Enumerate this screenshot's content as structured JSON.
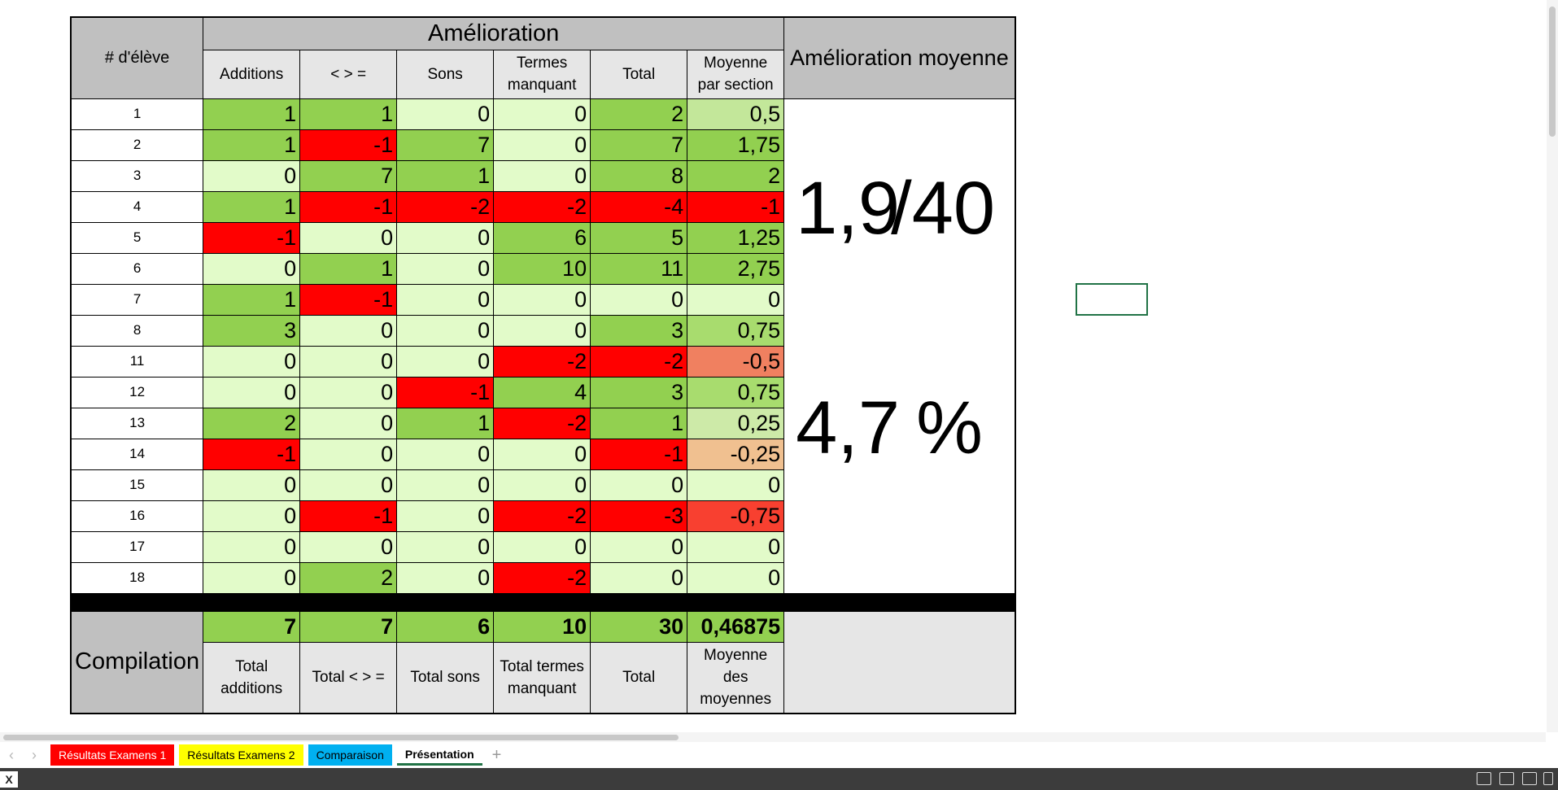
{
  "sheet": {
    "title": "Amélioration",
    "student_header": "# d'élève",
    "avg_header": "Amélioration moyenne",
    "columns": [
      "Additions",
      "< > =",
      "Sons",
      "Termes manquant",
      "Total",
      "Moyenne par section"
    ],
    "rows": [
      {
        "id": "1",
        "values": [
          "1",
          "1",
          "0",
          "0",
          "2",
          "0,5"
        ]
      },
      {
        "id": "2",
        "values": [
          "1",
          "-1",
          "7",
          "0",
          "7",
          "1,75"
        ]
      },
      {
        "id": "3",
        "values": [
          "0",
          "7",
          "1",
          "0",
          "8",
          "2"
        ]
      },
      {
        "id": "4",
        "values": [
          "1",
          "-1",
          "-2",
          "-2",
          "-4",
          "-1"
        ]
      },
      {
        "id": "5",
        "values": [
          "-1",
          "0",
          "0",
          "6",
          "5",
          "1,25"
        ]
      },
      {
        "id": "6",
        "values": [
          "0",
          "1",
          "0",
          "10",
          "11",
          "2,75"
        ]
      },
      {
        "id": "7",
        "values": [
          "1",
          "-1",
          "0",
          "0",
          "0",
          "0"
        ]
      },
      {
        "id": "8",
        "values": [
          "3",
          "0",
          "0",
          "0",
          "3",
          "0,75"
        ]
      },
      {
        "id": "11",
        "values": [
          "0",
          "0",
          "0",
          "-2",
          "-2",
          "-0,5"
        ]
      },
      {
        "id": "12",
        "values": [
          "0",
          "0",
          "-1",
          "4",
          "3",
          "0,75"
        ]
      },
      {
        "id": "13",
        "values": [
          "2",
          "0",
          "1",
          "-2",
          "1",
          "0,25"
        ]
      },
      {
        "id": "14",
        "values": [
          "-1",
          "0",
          "0",
          "0",
          "-1",
          "-0,25"
        ]
      },
      {
        "id": "15",
        "values": [
          "0",
          "0",
          "0",
          "0",
          "0",
          "0"
        ]
      },
      {
        "id": "16",
        "values": [
          "0",
          "-1",
          "0",
          "-2",
          "-3",
          "-0,75"
        ]
      },
      {
        "id": "17",
        "values": [
          "0",
          "0",
          "0",
          "0",
          "0",
          "0"
        ]
      },
      {
        "id": "18",
        "values": [
          "0",
          "2",
          "0",
          "-2",
          "0",
          "0"
        ]
      }
    ],
    "summary": {
      "score": "1,9",
      "score_suffix": "/40",
      "percent": "4,7",
      "percent_sign": "%"
    },
    "compilation": {
      "label": "Compilation",
      "values": [
        "7",
        "7",
        "6",
        "10",
        "30",
        "0,46875"
      ],
      "labels": [
        "Total additions",
        "Total < > =",
        "Total sons",
        "Total termes manquant",
        "Total",
        "Moyenne des moyennes"
      ]
    }
  },
  "colors": {
    "positive": "#92d050",
    "zero": "#e2fbc9",
    "negative": "#ff0000",
    "header": "#c0c0c0",
    "subheader": "#e6e6e6",
    "avg_colors": {
      "0,5": "#c3e79a",
      "1,75": "#92d050",
      "2": "#92d050",
      "-1": "#ff0000",
      "1,25": "#92d050",
      "2,75": "#92d050",
      "0": "#e2fbc9",
      "0,75": "#a8dc6e",
      "-0,5": "#f08060",
      "0,25": "#cdeaa8",
      "-0,25": "#f0c090",
      "-0,75": "#f84030"
    }
  },
  "tabs": [
    {
      "label": "Résultats Examens 1",
      "color": "#ff0000"
    },
    {
      "label": "Résultats Examens 2",
      "color": "#ffff00"
    },
    {
      "label": "Comparaison",
      "color": "#00b0f0"
    },
    {
      "label": "Présentation",
      "color": ""
    }
  ],
  "tab_add": "+"
}
